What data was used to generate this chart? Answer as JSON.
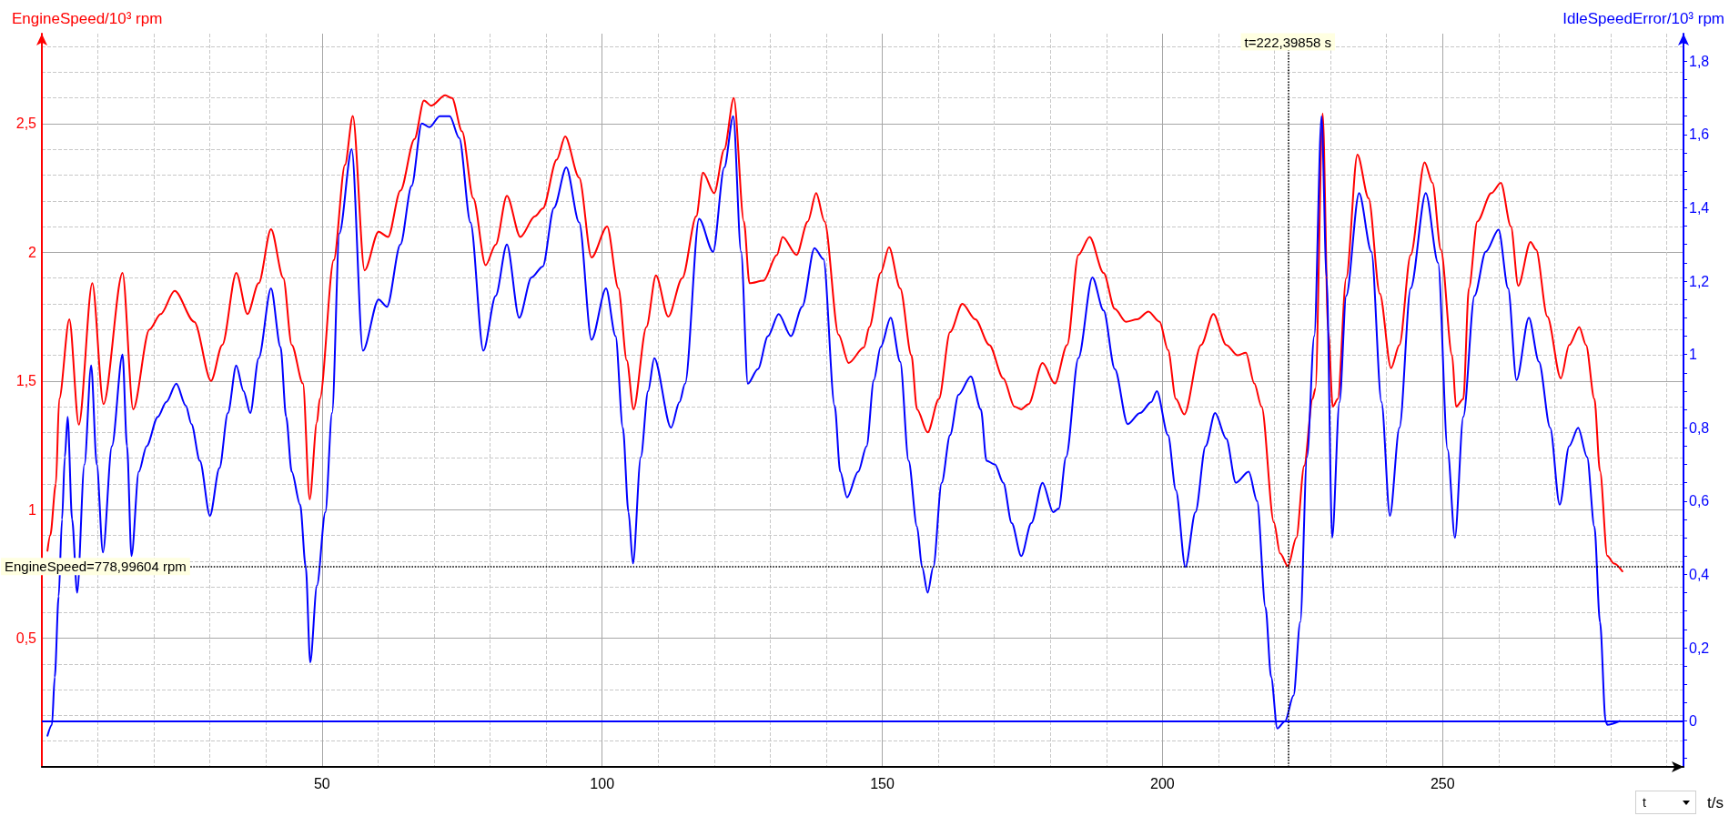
{
  "chart_data": {
    "type": "line",
    "xlabel": "t/s",
    "ylabel": "EngineSpeed/10³ rpm",
    "y2label": "IdleSpeedError/10³ rpm",
    "annotations": [
      "t"
    ],
    "series": [
      {
        "color": "#ff0000",
        "x": [
          1.0,
          1.5,
          2.5,
          3.1,
          4.9,
          6.6,
          9.0,
          11.0,
          14.4,
          16.3,
          19.2,
          21.2,
          23.7,
          27.2,
          30.2,
          32.2,
          34.7,
          36.7,
          38.7,
          40.9,
          43.1,
          44.6,
          46.6,
          47.8,
          49.1,
          49.6,
          52.1,
          54.1,
          55.5,
          57.6,
          60.1,
          61.8,
          64.0,
          66.5,
          68.2,
          69.5,
          72.0,
          73.2,
          75.0,
          77.0,
          79.2,
          81.0,
          83.0,
          85.4,
          88.0,
          89.4,
          91.9,
          93.4,
          95.9,
          98.1,
          100.9,
          102.9,
          104.4,
          105.6,
          107.9,
          109.6,
          111.8,
          114.3,
          116.8,
          118.0,
          120.0,
          121.8,
          123.5,
          125.3,
          126.3,
          128.8,
          131.2,
          132.2,
          134.7,
          136.7,
          138.2,
          139.7,
          142.2,
          144.0,
          146.7,
          147.7,
          149.7,
          151.2,
          153.2,
          155.2,
          156.2,
          158.1,
          160.1,
          162.1,
          164.3,
          166.6,
          169.1,
          171.6,
          173.6,
          174.8,
          176.1,
          178.6,
          180.8,
          183.0,
          185.0,
          187.0,
          189.5,
          191.5,
          193.5,
          195.5,
          197.5,
          199.5,
          201.0,
          202.4,
          203.9,
          206.9,
          209.1,
          211.4,
          213.4,
          214.9,
          216.4,
          217.7,
          219.9,
          221.0,
          222.4,
          223.9,
          225.3,
          226.8,
          227.3,
          228.6,
          229.6,
          230.4,
          231.3,
          232.8,
          234.8,
          236.8,
          238.8,
          240.8,
          242.3,
          244.3,
          246.8,
          248.2,
          249.7,
          251.7,
          252.4,
          253.7,
          254.7,
          256.2,
          258.7,
          260.4,
          262.2,
          263.5,
          265.7,
          266.7,
          268.7,
          271.1,
          272.6,
          274.4,
          275.6,
          277.1,
          278.1,
          279.4,
          280.6,
          282.1
        ],
        "values": [
          0.84,
          0.9,
          1.1,
          1.43,
          1.74,
          1.33,
          1.88,
          1.41,
          1.92,
          1.39,
          1.7,
          1.76,
          1.85,
          1.73,
          1.5,
          1.64,
          1.92,
          1.76,
          1.88,
          2.09,
          1.9,
          1.64,
          1.49,
          1.04,
          1.34,
          1.43,
          1.97,
          2.34,
          2.53,
          1.93,
          2.08,
          2.06,
          2.24,
          2.44,
          2.59,
          2.57,
          2.61,
          2.6,
          2.47,
          2.21,
          1.95,
          2.03,
          2.22,
          2.06,
          2.14,
          2.17,
          2.36,
          2.45,
          2.29,
          1.98,
          2.1,
          1.86,
          1.58,
          1.39,
          1.71,
          1.91,
          1.75,
          1.9,
          2.14,
          2.31,
          2.23,
          2.4,
          2.6,
          2.12,
          1.88,
          1.89,
          1.99,
          2.06,
          1.99,
          2.12,
          2.23,
          2.12,
          1.68,
          1.57,
          1.63,
          1.71,
          1.92,
          2.02,
          1.86,
          1.6,
          1.39,
          1.3,
          1.43,
          1.69,
          1.8,
          1.74,
          1.64,
          1.51,
          1.4,
          1.39,
          1.41,
          1.57,
          1.49,
          1.64,
          1.99,
          2.06,
          1.92,
          1.78,
          1.73,
          1.74,
          1.77,
          1.73,
          1.62,
          1.43,
          1.37,
          1.64,
          1.76,
          1.64,
          1.6,
          1.61,
          1.49,
          1.4,
          0.95,
          0.83,
          0.78,
          0.89,
          1.17,
          1.43,
          1.47,
          2.54,
          1.69,
          1.4,
          1.43,
          1.9,
          2.38,
          2.21,
          1.84,
          1.55,
          1.64,
          1.99,
          2.35,
          2.27,
          2.01,
          1.6,
          1.4,
          1.43,
          1.86,
          2.12,
          2.23,
          2.27,
          2.1,
          1.87,
          2.04,
          2.01,
          1.75,
          1.51,
          1.64,
          1.71,
          1.64,
          1.43,
          1.15,
          0.82,
          0.79,
          0.76
        ]
      },
      {
        "color": "#0000ff",
        "axis": "y2",
        "x": [
          1.0,
          1.8,
          2.3,
          3.0,
          3.6,
          4.1,
          4.6,
          5.4,
          6.3,
          7.6,
          8.8,
          9.8,
          10.9,
          12.5,
          14.4,
          15.2,
          16.0,
          17.3,
          18.7,
          20.7,
          22.2,
          24.0,
          25.7,
          26.7,
          28.2,
          30.0,
          31.7,
          33.2,
          34.7,
          36.0,
          37.2,
          38.7,
          40.9,
          42.6,
          43.6,
          44.6,
          46.1,
          47.1,
          47.9,
          49.1,
          50.6,
          51.8,
          53.1,
          55.3,
          57.3,
          60.1,
          61.6,
          64.0,
          66.0,
          67.8,
          69.2,
          71.0,
          72.8,
          74.5,
          76.5,
          78.8,
          81.0,
          83.0,
          85.2,
          87.4,
          89.4,
          91.4,
          93.6,
          95.9,
          98.1,
          100.7,
          102.4,
          103.7,
          104.7,
          105.5,
          106.9,
          108.2,
          109.3,
          112.3,
          113.8,
          114.8,
          117.3,
          119.8,
          121.8,
          123.4,
          124.8,
          126.0,
          127.8,
          129.6,
          131.5,
          133.7,
          135.7,
          137.9,
          139.5,
          141.5,
          142.5,
          143.7,
          145.7,
          147.2,
          148.5,
          149.7,
          151.5,
          153.2,
          154.7,
          156.2,
          157.1,
          158.1,
          159.1,
          160.6,
          162.1,
          163.6,
          165.8,
          167.6,
          168.6,
          170.1,
          171.6,
          173.1,
          174.8,
          176.6,
          178.6,
          180.5,
          181.5,
          182.8,
          185.0,
          187.5,
          189.5,
          191.5,
          193.8,
          196.0,
          198.0,
          199.0,
          201.0,
          202.4,
          204.1,
          205.9,
          207.7,
          209.4,
          211.4,
          213.1,
          215.4,
          216.9,
          218.4,
          219.4,
          220.5,
          221.9,
          223.4,
          224.6,
          225.8,
          227.1,
          228.4,
          229.3,
          230.3,
          231.6,
          232.8,
          235.1,
          237.3,
          239.1,
          240.6,
          242.3,
          244.3,
          247.0,
          249.2,
          250.9,
          252.2,
          253.7,
          255.7,
          257.7,
          260.0,
          261.7,
          263.2,
          265.4,
          267.2,
          269.2,
          270.9,
          272.6,
          274.2,
          275.8,
          277.1,
          278.1,
          279.1,
          279.4,
          281.6
        ],
        "values": [
          -0.04,
          -0.01,
          0.12,
          0.34,
          0.55,
          0.72,
          0.83,
          0.55,
          0.35,
          0.7,
          0.97,
          0.7,
          0.46,
          0.75,
          1.0,
          0.75,
          0.45,
          0.68,
          0.75,
          0.83,
          0.87,
          0.92,
          0.86,
          0.81,
          0.71,
          0.56,
          0.69,
          0.84,
          0.97,
          0.9,
          0.84,
          0.99,
          1.18,
          1.02,
          0.83,
          0.68,
          0.59,
          0.42,
          0.16,
          0.37,
          0.57,
          0.84,
          1.33,
          1.56,
          1.01,
          1.15,
          1.13,
          1.3,
          1.46,
          1.63,
          1.62,
          1.65,
          1.65,
          1.59,
          1.36,
          1.01,
          1.16,
          1.3,
          1.1,
          1.21,
          1.24,
          1.4,
          1.51,
          1.36,
          1.04,
          1.18,
          1.05,
          0.8,
          0.57,
          0.43,
          0.72,
          0.9,
          0.99,
          0.8,
          0.87,
          0.92,
          1.37,
          1.28,
          1.51,
          1.65,
          1.28,
          0.92,
          0.96,
          1.05,
          1.11,
          1.05,
          1.13,
          1.29,
          1.26,
          0.86,
          0.68,
          0.61,
          0.68,
          0.75,
          0.93,
          1.02,
          1.1,
          0.98,
          0.71,
          0.53,
          0.42,
          0.35,
          0.42,
          0.65,
          0.78,
          0.89,
          0.94,
          0.85,
          0.71,
          0.7,
          0.65,
          0.54,
          0.45,
          0.54,
          0.65,
          0.57,
          0.58,
          0.72,
          0.99,
          1.21,
          1.12,
          0.96,
          0.81,
          0.84,
          0.87,
          0.9,
          0.78,
          0.63,
          0.42,
          0.57,
          0.75,
          0.84,
          0.77,
          0.65,
          0.68,
          0.6,
          0.31,
          0.12,
          -0.02,
          0.0,
          0.07,
          0.27,
          0.72,
          1.05,
          1.65,
          1.21,
          0.5,
          0.87,
          1.16,
          1.44,
          1.28,
          0.87,
          0.56,
          0.8,
          1.18,
          1.44,
          1.25,
          0.74,
          0.5,
          0.83,
          1.16,
          1.28,
          1.34,
          1.18,
          0.93,
          1.1,
          0.98,
          0.8,
          0.59,
          0.75,
          0.8,
          0.72,
          0.53,
          0.27,
          0.0,
          -0.01,
          0.0
        ]
      }
    ],
    "xlim": [
      0,
      293
    ],
    "xticks": [
      {
        "value": 10,
        "label": null
      },
      {
        "value": 20,
        "label": null
      },
      {
        "value": 30,
        "label": null
      },
      {
        "value": 40,
        "label": null
      },
      50,
      {
        "value": 60,
        "label": null
      },
      {
        "value": 70,
        "label": null
      },
      {
        "value": 80,
        "label": null
      },
      {
        "value": 90,
        "label": null
      },
      100,
      {
        "value": 110,
        "label": null
      },
      {
        "value": 120,
        "label": null
      },
      {
        "value": 130,
        "label": null
      },
      {
        "value": 140,
        "label": null
      },
      150,
      {
        "value": 160,
        "label": null
      },
      {
        "value": 170,
        "label": null
      },
      {
        "value": 180,
        "label": null
      },
      {
        "value": 190,
        "label": null
      },
      200,
      {
        "value": 210,
        "label": null
      },
      {
        "value": 220,
        "label": null
      },
      {
        "value": 230,
        "label": null
      },
      {
        "value": 240,
        "label": null
      },
      250,
      {
        "value": 260,
        "label": null
      },
      {
        "value": 270,
        "label": null
      },
      {
        "value": 280,
        "label": null
      },
      {
        "value": 290,
        "label": null
      }
    ],
    "ylim": [
      0,
      2.85
    ],
    "yticks": [
      {
        "value": 0.1,
        "label": null
      },
      {
        "value": 0.2,
        "label": null
      },
      {
        "value": 0.3,
        "label": null
      },
      {
        "value": 0.4,
        "label": null
      },
      {
        "value": 0.5,
        "label": "0,5"
      },
      {
        "value": 0.6,
        "label": null
      },
      {
        "value": 0.7,
        "label": null
      },
      {
        "value": 0.8,
        "label": null
      },
      {
        "value": 0.9,
        "label": null
      },
      1,
      {
        "value": 1.1,
        "label": null
      },
      {
        "value": 1.2,
        "label": null
      },
      {
        "value": 1.3,
        "label": null
      },
      {
        "value": 1.4,
        "label": null
      },
      {
        "value": 1.5,
        "label": "1,5"
      },
      {
        "value": 1.6,
        "label": null
      },
      {
        "value": 1.7,
        "label": null
      },
      {
        "value": 1.8,
        "label": null
      },
      {
        "value": 1.9,
        "label": null
      },
      2,
      {
        "value": 2.1,
        "label": null
      },
      {
        "value": 2.2,
        "label": null
      },
      {
        "value": 2.3,
        "label": null
      },
      {
        "value": 2.4,
        "label": null
      },
      {
        "value": 2.5,
        "label": "2,5"
      },
      {
        "value": 2.6,
        "label": null
      },
      {
        "value": 2.7,
        "label": null
      },
      {
        "value": 2.8,
        "label": null
      }
    ],
    "y2lim": [
      -0.125,
      1.875
    ],
    "y2ticks": [
      {
        "value": -0.1,
        "label": null
      },
      {
        "value": -0.05,
        "label": null
      },
      0,
      {
        "value": 0.05,
        "label": null
      },
      {
        "value": 0.1,
        "label": null
      },
      {
        "value": 0.15,
        "label": null
      },
      {
        "value": 0.2,
        "label": "0,2"
      },
      {
        "value": 0.25,
        "label": null
      },
      {
        "value": 0.3,
        "label": null
      },
      {
        "value": 0.35,
        "label": null
      },
      {
        "value": 0.4,
        "label": "0,4"
      },
      {
        "value": 0.45,
        "label": null
      },
      {
        "value": 0.5,
        "label": null
      },
      {
        "value": 0.55,
        "label": null
      },
      {
        "value": 0.6,
        "label": "0,6"
      },
      {
        "value": 0.65,
        "label": null
      },
      {
        "value": 0.7,
        "label": null
      },
      {
        "value": 0.75,
        "label": null
      },
      {
        "value": 0.8,
        "label": "0,8"
      },
      {
        "value": 0.85,
        "label": null
      },
      {
        "value": 0.9,
        "label": null
      },
      {
        "value": 0.95,
        "label": null
      },
      1,
      {
        "value": 1.05,
        "label": null
      },
      {
        "value": 1.1,
        "label": null
      },
      {
        "value": 1.15,
        "label": null
      },
      {
        "value": 1.2,
        "label": "1,2"
      },
      {
        "value": 1.25,
        "label": null
      },
      {
        "value": 1.3,
        "label": null
      },
      {
        "value": 1.35,
        "label": null
      },
      {
        "value": 1.4,
        "label": "1,4"
      },
      {
        "value": 1.45,
        "label": null
      },
      {
        "value": 1.5,
        "label": null
      },
      {
        "value": 1.55,
        "label": null
      },
      {
        "value": 1.6,
        "label": "1,6"
      },
      {
        "value": 1.65,
        "label": null
      },
      {
        "value": 1.7,
        "label": null
      },
      {
        "value": 1.75,
        "label": null
      },
      {
        "value": 1.8,
        "label": "1,8"
      },
      {
        "value": 1.85,
        "label": null
      }
    ],
    "ref_lines": [
      {
        "axis": "x",
        "value": 222.39858,
        "label": "t=222,39858 s",
        "color": "#000000",
        "line_style": "dotted"
      },
      {
        "axis": "y",
        "value": 0.77899604,
        "label": "EngineSpeed=778,99604 rpm",
        "color": "#000000",
        "line_style": "dotted"
      },
      {
        "axis": "y2",
        "value": 0,
        "color": "#0000ff",
        "line_style": "solid"
      }
    ],
    "grid": true,
    "marker": "none",
    "line_style": "solid"
  }
}
